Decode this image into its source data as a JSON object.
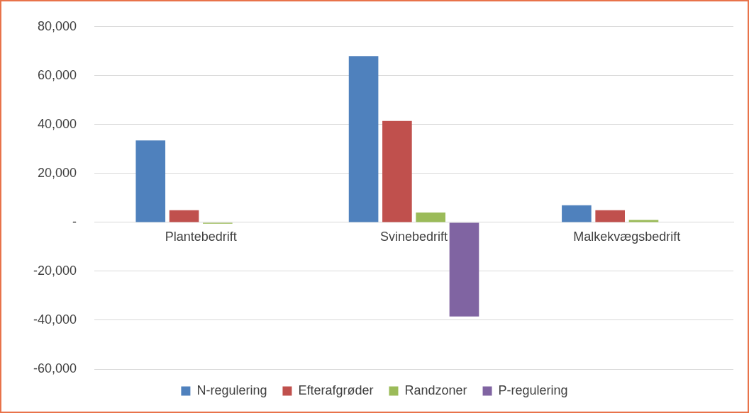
{
  "chart_data": {
    "type": "bar",
    "categories": [
      "Plantebedrift",
      "Svinebedrift",
      "Malkekvægsbedrift"
    ],
    "series": [
      {
        "name": "N-regulering",
        "color": "#4f81bd",
        "values": [
          33500,
          68000,
          7000
        ]
      },
      {
        "name": "Efterafgrøder",
        "color": "#c0504d",
        "values": [
          5000,
          41500,
          5000
        ]
      },
      {
        "name": "Randzoner",
        "color": "#9bbb59",
        "values": [
          -500,
          4000,
          1000
        ]
      },
      {
        "name": "P-regulering",
        "color": "#8064a2",
        "values": [
          0,
          -38500,
          0
        ]
      }
    ],
    "ylim": [
      -60000,
      80000
    ],
    "yticks": [
      {
        "value": -60000,
        "label": "-60,000"
      },
      {
        "value": -40000,
        "label": "-40,000"
      },
      {
        "value": -20000,
        "label": "-20,000"
      },
      {
        "value": 0,
        "label": "-"
      },
      {
        "value": 20000,
        "label": "20,000"
      },
      {
        "value": 40000,
        "label": "40,000"
      },
      {
        "value": 60000,
        "label": "60,000"
      },
      {
        "value": 80000,
        "label": "80,000"
      }
    ],
    "grid": "y",
    "legend": "bottom"
  }
}
